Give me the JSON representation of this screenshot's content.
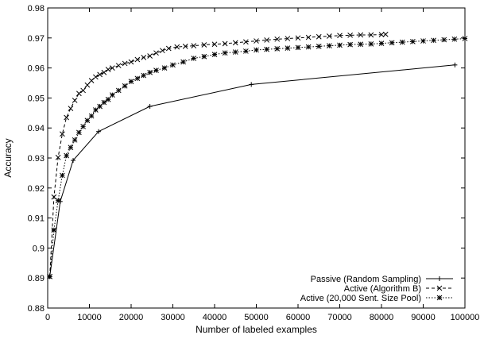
{
  "chart_data": {
    "type": "line",
    "title": "",
    "xlabel": "Number of labeled examples",
    "ylabel": "Accuracy",
    "xlim": [
      0,
      100000
    ],
    "ylim": [
      0.88,
      0.98
    ],
    "x_ticks": [
      0,
      10000,
      20000,
      30000,
      40000,
      50000,
      60000,
      70000,
      80000,
      90000,
      100000
    ],
    "y_ticks": [
      0.88,
      0.89,
      0.9,
      0.91,
      0.92,
      0.93,
      0.94,
      0.95,
      0.96,
      0.97,
      0.98
    ],
    "x_tick_labels": [
      "0",
      "10000",
      "20000",
      "30000",
      "40000",
      "50000",
      "60000",
      "70000",
      "80000",
      "90000",
      "100000"
    ],
    "y_tick_labels": [
      "0.88",
      "0.89",
      "0.9",
      "0.91",
      "0.92",
      "0.93",
      "0.94",
      "0.95",
      "0.96",
      "0.97",
      "0.98"
    ],
    "grid": false,
    "legend_position": "bottom-right",
    "series": [
      {
        "name": "Passive (Random Sampling)",
        "marker": "plus",
        "line_style": "solid",
        "x": [
          500,
          3000,
          6100,
          12200,
          24500,
          48800,
          97600
        ],
        "y": [
          0.8905,
          0.9155,
          0.9292,
          0.9388,
          0.9472,
          0.9545,
          0.961
        ]
      },
      {
        "name": "Active (Algorithm B)",
        "marker": "x",
        "line_style": "dashed",
        "x": [
          500,
          1500,
          2500,
          3500,
          4500,
          5500,
          6500,
          7500,
          8500,
          9500,
          10500,
          11500,
          12500,
          13500,
          14500,
          15500,
          17000,
          18500,
          20000,
          21500,
          23000,
          24500,
          26000,
          27500,
          29000,
          31000,
          33000,
          35000,
          37500,
          40000,
          42500,
          45000,
          47500,
          50000,
          52500,
          55000,
          57500,
          60000,
          62500,
          65000,
          67500,
          70000,
          72500,
          75000,
          77500,
          80000,
          81000
        ],
        "y": [
          0.8905,
          0.917,
          0.9302,
          0.938,
          0.9435,
          0.9465,
          0.9492,
          0.9515,
          0.9525,
          0.9543,
          0.9558,
          0.957,
          0.9578,
          0.9585,
          0.9595,
          0.96,
          0.9608,
          0.9615,
          0.962,
          0.9628,
          0.9635,
          0.964,
          0.965,
          0.9658,
          0.9665,
          0.967,
          0.9672,
          0.9674,
          0.9677,
          0.9679,
          0.9681,
          0.9684,
          0.9687,
          0.969,
          0.9693,
          0.9696,
          0.9698,
          0.97,
          0.9702,
          0.9704,
          0.9706,
          0.9708,
          0.9709,
          0.971,
          0.971,
          0.9711,
          0.9712
        ]
      },
      {
        "name": "Active (20,000 Sent. Size Pool)",
        "marker": "star",
        "line_style": "dotted",
        "x": [
          500,
          1500,
          2500,
          3500,
          4500,
          5500,
          6500,
          7500,
          8500,
          9500,
          10500,
          11500,
          12500,
          13500,
          14500,
          15500,
          17000,
          18500,
          20000,
          21500,
          23000,
          24500,
          26000,
          28000,
          30000,
          32500,
          35000,
          37500,
          40000,
          42500,
          45000,
          47500,
          50000,
          52500,
          55000,
          57500,
          60000,
          62500,
          65000,
          67500,
          70000,
          72500,
          75000,
          77500,
          80000,
          82500,
          85000,
          87500,
          90000,
          92500,
          95000,
          97500,
          100000
        ],
        "y": [
          0.8905,
          0.906,
          0.9158,
          0.9242,
          0.9308,
          0.9335,
          0.936,
          0.9385,
          0.9405,
          0.9425,
          0.944,
          0.946,
          0.9472,
          0.9485,
          0.9495,
          0.951,
          0.9525,
          0.954,
          0.9555,
          0.9565,
          0.9575,
          0.9585,
          0.9592,
          0.96,
          0.961,
          0.962,
          0.9632,
          0.9638,
          0.9645,
          0.965,
          0.9653,
          0.9656,
          0.966,
          0.9662,
          0.9664,
          0.9666,
          0.9668,
          0.967,
          0.9672,
          0.9674,
          0.9676,
          0.9678,
          0.9679,
          0.968,
          0.9682,
          0.9684,
          0.9686,
          0.9688,
          0.969,
          0.9692,
          0.9694,
          0.9696,
          0.9698
        ]
      }
    ]
  }
}
